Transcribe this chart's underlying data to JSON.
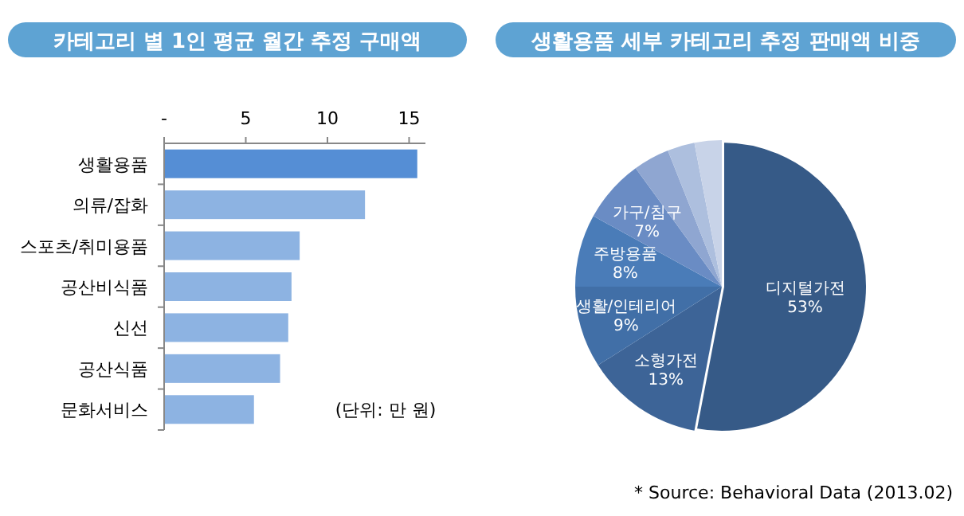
{
  "chart_data": [
    {
      "type": "bar",
      "orientation": "horizontal",
      "title": "카테고리 별 1인 평균 월간 추정 구매액",
      "categories": [
        "생활용품",
        "의류/잡화",
        "스포츠/취미용품",
        "공산비식품",
        "신선",
        "공산식품",
        "문화서비스"
      ],
      "values": [
        15.5,
        12.3,
        8.3,
        7.8,
        7.6,
        7.1,
        5.5
      ],
      "colors": [
        "#558ed5",
        "#8db3e2",
        "#8db3e2",
        "#8db3e2",
        "#8db3e2",
        "#8db3e2",
        "#8db3e2"
      ],
      "xlim": [
        0,
        16
      ],
      "xticks": [
        {
          "value": 0,
          "label": "-"
        },
        5,
        10,
        15
      ],
      "grid": false,
      "annotations": [
        "(단위: 만 원)"
      ]
    },
    {
      "type": "pie",
      "title": "생활용품 세부 카테고리 추정 판매액 비중",
      "categories": [
        "디지털가전",
        "소형가전",
        "생활/인테리어",
        "주방용품",
        "가구/침구",
        null,
        null,
        null
      ],
      "values": [
        53,
        13,
        9,
        8,
        7,
        4,
        3,
        3
      ],
      "value_labels": [
        "53%",
        "13%",
        "9%",
        "8%",
        "7%",
        null,
        null,
        null
      ],
      "colors": [
        "#365a87",
        "#3d6497",
        "#416fa7",
        "#4a7cb8",
        "#6a8cc4",
        "#8fa6d1",
        "#adbfde",
        "#c8d3e8"
      ],
      "annotations": [
        "* Source: Behavioral Data (2013.02)"
      ]
    }
  ]
}
